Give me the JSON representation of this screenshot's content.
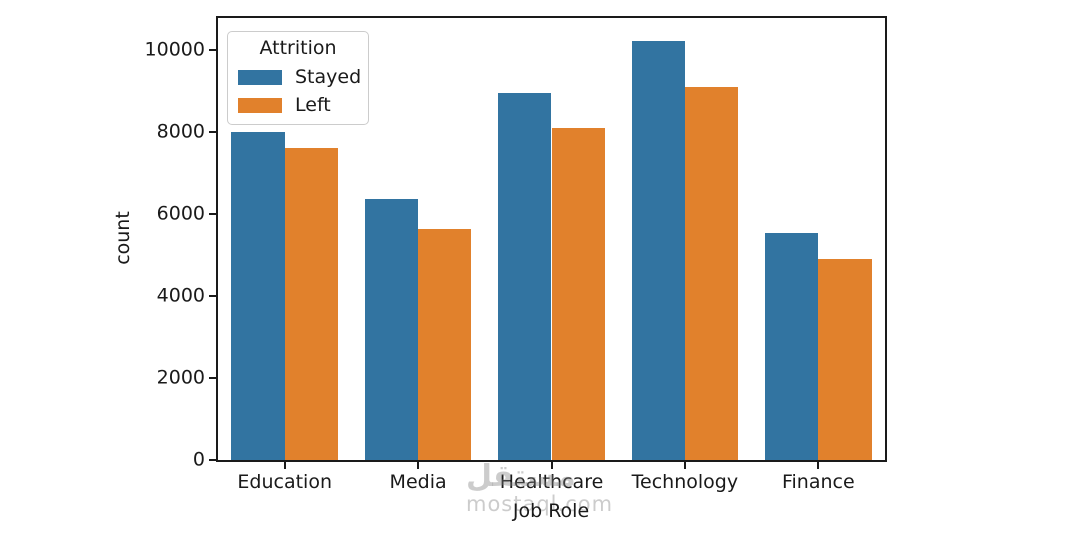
{
  "chart_data": {
    "type": "bar",
    "title": "",
    "xlabel": "Job Role",
    "ylabel": "count",
    "categories": [
      "Education",
      "Media",
      "Healthcare",
      "Technology",
      "Finance"
    ],
    "series": [
      {
        "name": "Stayed",
        "color": "#3274A1",
        "values": [
          8000,
          6370,
          8950,
          10220,
          5530
        ]
      },
      {
        "name": "Left",
        "color": "#E1812C",
        "values": [
          7610,
          5640,
          8100,
          9090,
          4900
        ]
      }
    ],
    "ylim": [
      0,
      10780
    ],
    "yticks": [
      "0",
      "2000",
      "4000",
      "6000",
      "8000",
      "10000"
    ],
    "grid": false,
    "legend": {
      "title": "Attrition",
      "position": "upper left"
    },
    "bar_group_fraction": 0.8
  },
  "watermark": {
    "logo": "مستقل",
    "text": "mostaql.com"
  }
}
